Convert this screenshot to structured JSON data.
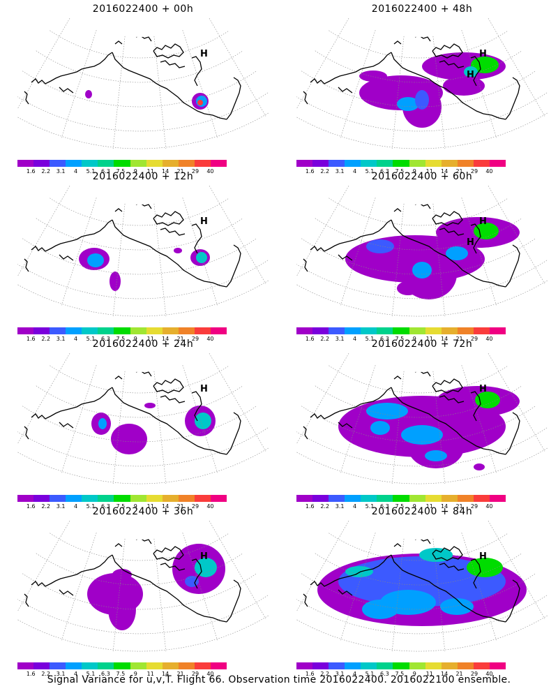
{
  "caption": "Signal Variance for u,v,T. Flight 66. Observation time 2016022400. 2016022100 ensemble.",
  "colorbar": {
    "labels": [
      "1.6",
      "2.2",
      "3.1",
      "4",
      "5.1",
      "6.3",
      "7.5",
      "9",
      "11",
      "14",
      "21",
      "29",
      "40"
    ],
    "colors": [
      "#a000c8",
      "#7a00dc",
      "#3c5aff",
      "#00a0ff",
      "#00c8c8",
      "#00d28c",
      "#00dc00",
      "#a0e632",
      "#e6dc32",
      "#e6af2d",
      "#f08228",
      "#fa3c3c",
      "#f00082"
    ]
  },
  "panels": [
    {
      "id": "p00",
      "title": "2016022400 + 00h",
      "lead": 0,
      "markers": [
        "H"
      ]
    },
    {
      "id": "p48",
      "title": "2016022400 + 48h",
      "lead": 48,
      "markers": [
        "H",
        "H"
      ]
    },
    {
      "id": "p12",
      "title": "2016022400 + 12h",
      "lead": 12,
      "markers": [
        "H"
      ]
    },
    {
      "id": "p60",
      "title": "2016022400 + 60h",
      "lead": 60,
      "markers": [
        "H",
        "H"
      ]
    },
    {
      "id": "p24",
      "title": "2016022400 + 24h",
      "lead": 24,
      "markers": [
        "H"
      ]
    },
    {
      "id": "p72",
      "title": "2016022400 + 72h",
      "lead": 72,
      "markers": [
        "H"
      ]
    },
    {
      "id": "p36",
      "title": "2016022400 + 36h",
      "lead": 36,
      "markers": [
        "H"
      ]
    },
    {
      "id": "p84",
      "title": "2016022400 + 84h",
      "lead": 84,
      "markers": [
        "H"
      ]
    }
  ]
}
